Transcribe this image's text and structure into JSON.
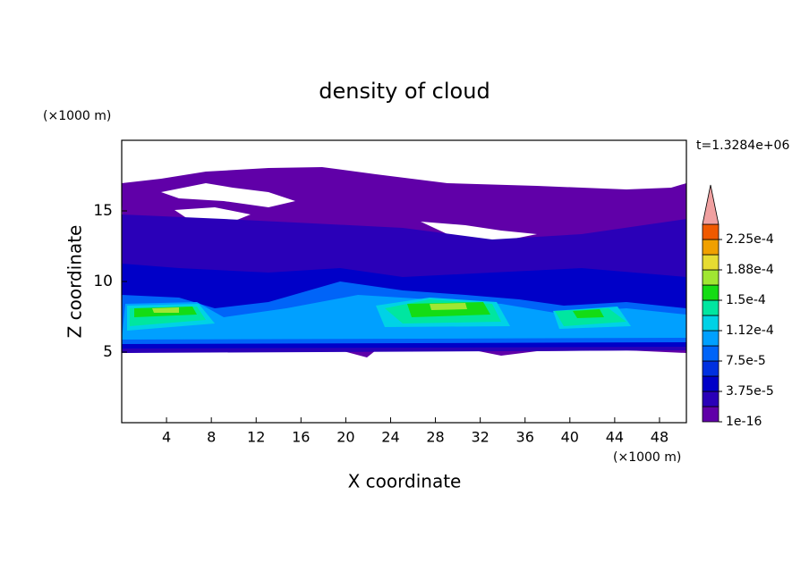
{
  "chart_data": {
    "type": "contour",
    "title": "density of cloud",
    "x_label": "X coordinate",
    "y_label": "Z coordinate",
    "x_unit": "(×1000 m)",
    "y_unit": "(×1000 m)",
    "annotation": "t=1.3284e+06",
    "xlim": [
      0,
      50.4
    ],
    "xticks": [
      4,
      8,
      12,
      16,
      20,
      24,
      28,
      32,
      36,
      40,
      44,
      48
    ],
    "ylim": [
      0,
      20
    ],
    "yticks": [
      5,
      10,
      15
    ],
    "colorbar": {
      "clim": [
        1e-16,
        0.00024375
      ],
      "ticks": [
        {
          "value": 1e-16,
          "label": "1e-16"
        },
        {
          "value": 3.75e-05,
          "label": "3.75e-5"
        },
        {
          "value": 7.5e-05,
          "label": "7.5e-5"
        },
        {
          "value": 0.0001125,
          "label": "1.12e-4"
        },
        {
          "value": 0.00015,
          "label": "1.5e-4"
        },
        {
          "value": 0.0001875,
          "label": "1.88e-4"
        },
        {
          "value": 0.000225,
          "label": "2.25e-4"
        }
      ],
      "colors": [
        "#6000a8",
        "#2a00b8",
        "#0000c8",
        "#0030e0",
        "#0064f8",
        "#00a0ff",
        "#00d2e6",
        "#00e6a0",
        "#14dc14",
        "#a0e632",
        "#e6dc32",
        "#f0a000",
        "#f05a00"
      ],
      "extend_color": "#f0a0a0"
    }
  }
}
